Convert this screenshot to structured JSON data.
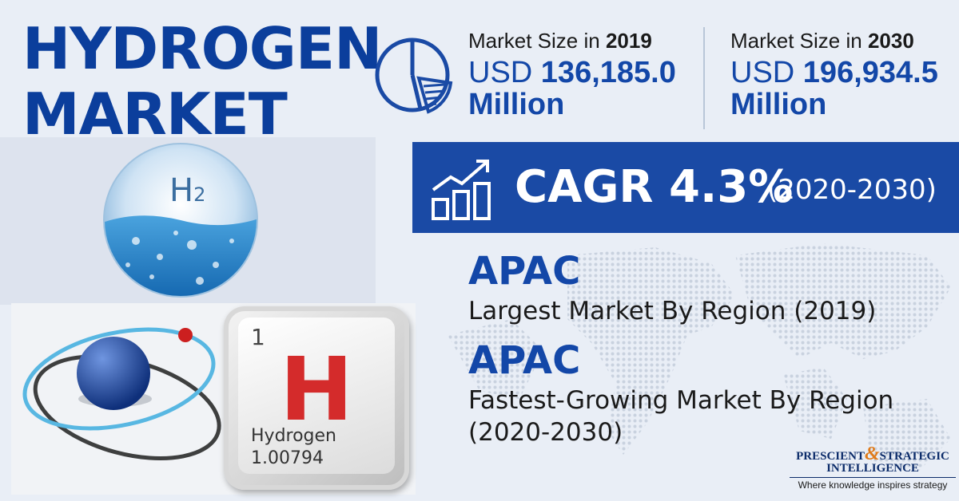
{
  "title": {
    "line1": "HYDROGEN",
    "line2": "MARKET"
  },
  "market_size": [
    {
      "label_prefix": "Market Size in ",
      "year": "2019",
      "currency": "USD ",
      "value": "136,185.0",
      "unit": "Million"
    },
    {
      "label_prefix": "Market Size in ",
      "year": "2030",
      "currency": "USD ",
      "value": "196,934.5",
      "unit": "Million"
    }
  ],
  "cagr": {
    "main": "CAGR 4.3%",
    "period": "(2020-2030)"
  },
  "regions": [
    {
      "name": "APAC",
      "desc_lines": [
        "Largest Market By Region (2019)"
      ]
    },
    {
      "name": "APAC",
      "desc_lines": [
        "Fastest-Growing Market By Region",
        "(2020-2030)"
      ]
    }
  ],
  "sphere_label": {
    "base": "H",
    "sub": "2"
  },
  "element_key": {
    "number": "1",
    "symbol": "H",
    "name": "Hydrogen",
    "mass": "1.00794"
  },
  "logo": {
    "part1": "PRESCIENT",
    "amp": "&",
    "part2": "STRATEGIC",
    "line2": "INTELLIGENCE",
    "tagline": "Where knowledge inspires strategy"
  },
  "colors": {
    "brand_blue": "#0b3e9c",
    "accent_blue": "#1347a8",
    "banner_blue": "#1a4aa5",
    "element_red": "#d42b2b",
    "logo_orange": "#e07b1a"
  },
  "icons": [
    "pie-chart-icon",
    "growth-chart-icon",
    "world-map-background"
  ]
}
